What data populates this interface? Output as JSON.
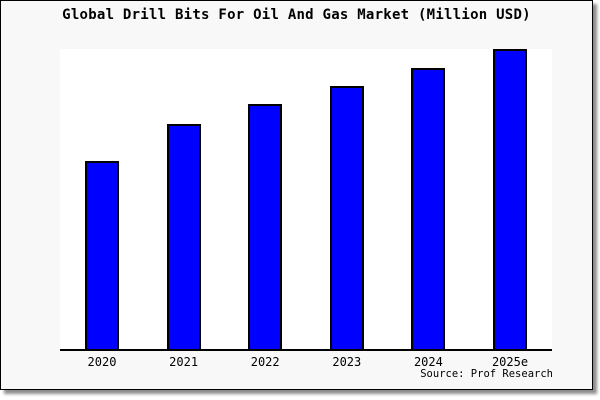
{
  "chart_data": {
    "type": "bar",
    "title": "Global Drill Bits For Oil And Gas Market (Million USD)",
    "categories": [
      "2020",
      "2021",
      "2022",
      "2023",
      "2024",
      "2025e"
    ],
    "values": [
      62.8,
      75.1,
      81.6,
      87.8,
      93.8,
      100
    ],
    "value_unit": "percent of tallest bar (y-axis has no visible labels)",
    "xlabel": "",
    "ylabel": "",
    "ylim": [
      0,
      100
    ],
    "grid": "off",
    "legend": "none",
    "bar_color": "#0000ff",
    "bar_border_color": "#000000",
    "source_label": "Source: Prof Research"
  },
  "colors": {
    "frame_background": "#f8f8f8",
    "plot_background": "#ffffff",
    "frame_border": "#000000",
    "text": "#000000"
  }
}
